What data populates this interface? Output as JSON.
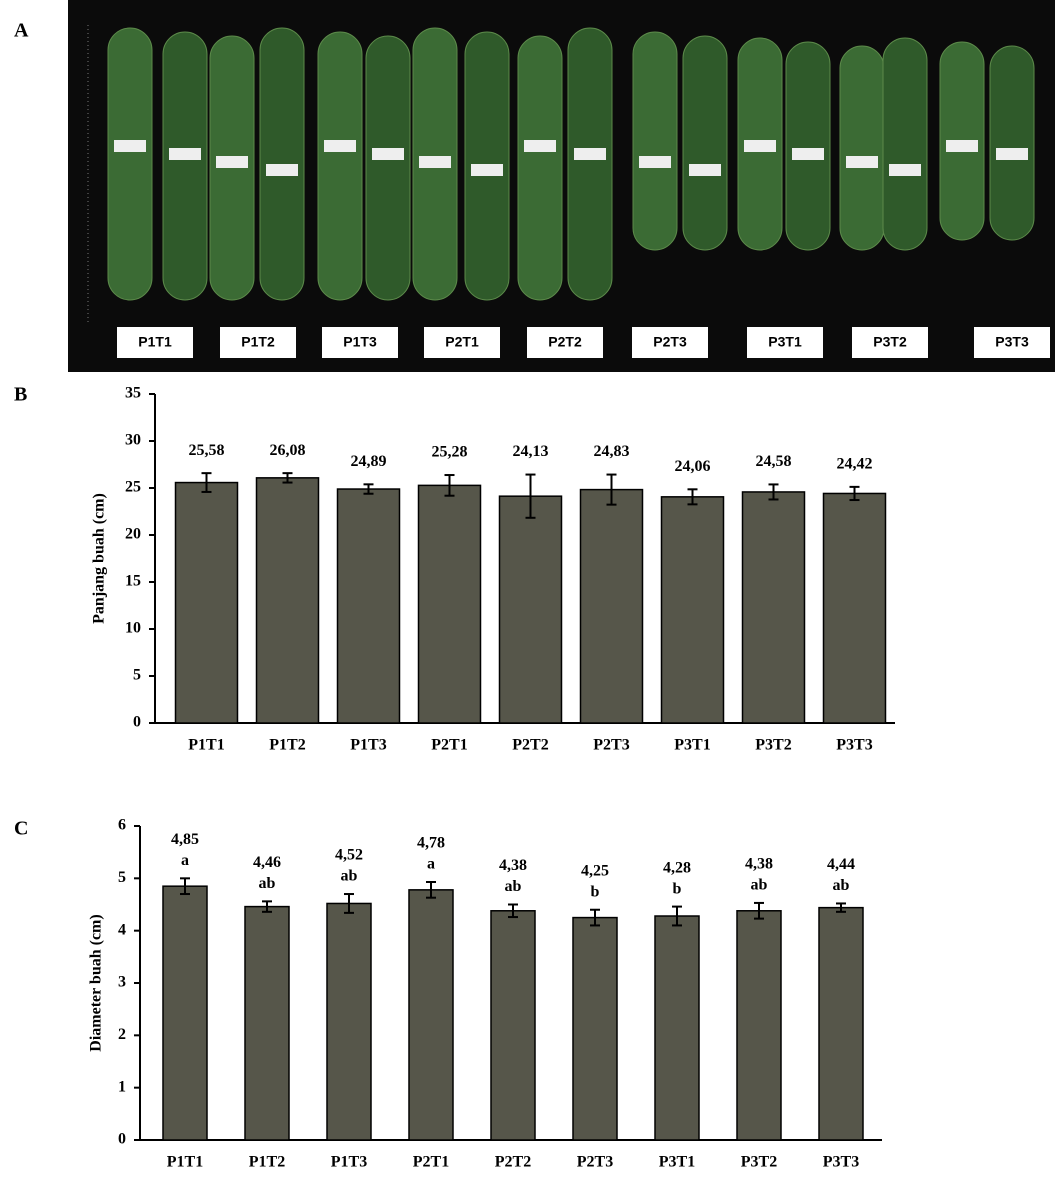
{
  "photo": {
    "panel_label": "A",
    "labels": [
      "P1T1",
      "P1T2",
      "P1T3",
      "P2T1",
      "P2T2",
      "P2T3",
      "P3T1",
      "P3T2",
      "P3T3"
    ]
  },
  "chart_data": [
    {
      "type": "bar",
      "panel_label": "B",
      "y_label": "Panjang buah (cm)",
      "categories": [
        "P1T1",
        "P1T2",
        "P1T3",
        "P2T1",
        "P2T2",
        "P2T3",
        "P3T1",
        "P3T2",
        "P3T3"
      ],
      "values": [
        25.58,
        26.08,
        24.89,
        25.28,
        24.13,
        24.83,
        24.06,
        24.58,
        24.42
      ],
      "value_labels": [
        "25,58",
        "26,08",
        "24,89",
        "25,28",
        "24,13",
        "24,83",
        "24,06",
        "24,58",
        "24,42"
      ],
      "errors": [
        1.0,
        0.5,
        0.5,
        1.1,
        2.3,
        1.6,
        0.8,
        0.8,
        0.7
      ],
      "color": "#56564a",
      "ylim": [
        0,
        35
      ],
      "yticks": [
        0,
        5,
        10,
        15,
        20,
        25,
        30,
        35
      ]
    },
    {
      "type": "bar",
      "panel_label": "C",
      "y_label": "Diameter buah (cm)",
      "categories": [
        "P1T1",
        "P1T2",
        "P1T3",
        "P2T1",
        "P2T2",
        "P2T3",
        "P3T1",
        "P3T2",
        "P3T3"
      ],
      "values": [
        4.85,
        4.46,
        4.52,
        4.78,
        4.38,
        4.25,
        4.28,
        4.38,
        4.44
      ],
      "value_labels": [
        "4,85",
        "4,46",
        "4,52",
        "4,78",
        "4,38",
        "4,25",
        "4,28",
        "4,38",
        "4,44"
      ],
      "letters": [
        "a",
        "ab",
        "ab",
        "a",
        "ab",
        "b",
        "b",
        "ab",
        "ab"
      ],
      "errors": [
        0.15,
        0.1,
        0.18,
        0.15,
        0.12,
        0.15,
        0.18,
        0.15,
        0.08
      ],
      "color": "#56564a",
      "ylim": [
        0,
        6
      ],
      "yticks": [
        0,
        1,
        2,
        3,
        4,
        5,
        6
      ]
    }
  ]
}
